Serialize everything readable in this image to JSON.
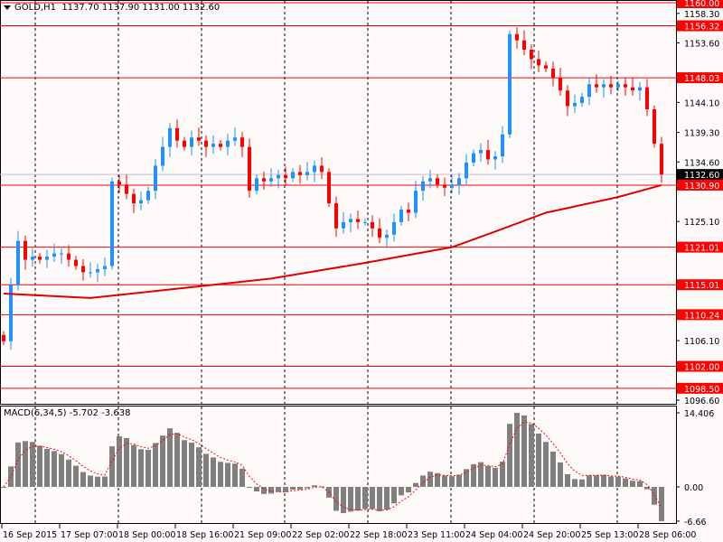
{
  "header": {
    "symbol": "GOLD,H1",
    "ohlc": "1137.70 1137.90 1131.00 1132.60"
  },
  "macd": {
    "label": "MACD(6,34,5)",
    "values": "-5.702 -3.638",
    "scale_max": 14.406,
    "scale_min": -6.66,
    "zero_label": "0.00",
    "max_label": "14.406",
    "min_label": "-6.66",
    "signal_color": "#ff0000",
    "hist_color": "#808080"
  },
  "colors": {
    "up": "#1e90ff",
    "down": "#ff0000",
    "level": "#ff0000",
    "ma": "#e00000",
    "bg": "#fffafa"
  },
  "chart_data": {
    "type": "candlestick",
    "price_range": [
      1096.6,
      1160.0
    ],
    "price_ticks": [
      "1158.30",
      "1153.60",
      "1144.10",
      "1139.30",
      "1134.60",
      "1125.10",
      "1106.10",
      "1096.60"
    ],
    "current_price": "1132.60",
    "levels": [
      "1160.00",
      "1156.32",
      "1148.03",
      "1130.90",
      "1121.01",
      "1115.01",
      "1110.24",
      "1102.00",
      "1098.50"
    ],
    "time_labels": [
      "16 Sep 2015",
      "17 Sep 07:00",
      "18 Sep 00:00",
      "18 Sep 16:00",
      "21 Sep 09:00",
      "22 Sep 02:00",
      "22 Sep 18:00",
      "23 Sep 11:00",
      "24 Sep 04:00",
      "24 Sep 20:00",
      "25 Sep 13:00",
      "28 Sep 06:00"
    ],
    "closes": [
      1106,
      1115,
      1122,
      1119,
      1119.5,
      1119,
      1119.5,
      1120,
      1120,
      1119,
      1118,
      1117,
      1117,
      1117.5,
      1118,
      1131.5,
      1131,
      1129.5,
      1128,
      1128.5,
      1130,
      1134,
      1137,
      1140,
      1138,
      1137,
      1138.5,
      1138,
      1137,
      1137.5,
      1137,
      1138,
      1138.5,
      1137,
      1130,
      1132,
      1131.5,
      1132,
      1132.5,
      1132,
      1133,
      1132.5,
      1133,
      1134,
      1133,
      1128,
      1124,
      1125,
      1125.5,
      1125,
      1125,
      1124,
      1122.5,
      1123,
      1125,
      1127,
      1126.5,
      1130,
      1131.5,
      1132,
      1131,
      1130.5,
      1131,
      1132,
      1134.5,
      1136,
      1136.5,
      1135,
      1135.5,
      1139,
      1155,
      1154,
      1152.5,
      1151,
      1150,
      1149.5,
      1148,
      1146,
      1143.5,
      1144,
      1145,
      1147,
      1146.5,
      1147,
      1146.5,
      1147,
      1146.5,
      1146,
      1146.5,
      1143,
      1137.5,
      1132.6
    ],
    "moving_average": [
      [
        0,
        1113.6
      ],
      [
        12,
        1112.9
      ],
      [
        25,
        1114.5
      ],
      [
        37,
        1116
      ],
      [
        50,
        1118.5
      ],
      [
        62,
        1121
      ],
      [
        68,
        1123.5
      ],
      [
        75,
        1126.5
      ],
      [
        85,
        1129
      ],
      [
        91,
        1130.9
      ]
    ]
  }
}
